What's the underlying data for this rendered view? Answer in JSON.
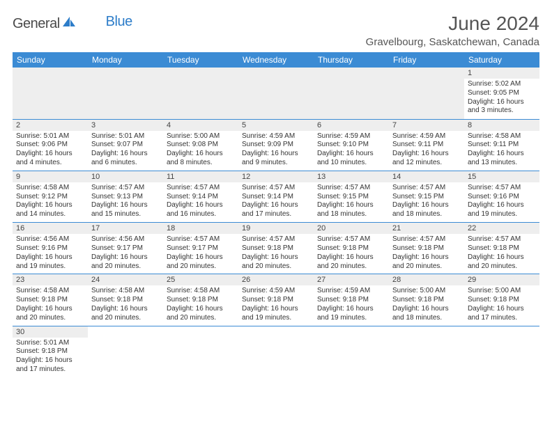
{
  "branding": {
    "logo_part1": "General",
    "logo_part2": "Blue",
    "sail_color": "#2d7dc9"
  },
  "header": {
    "title": "June 2024",
    "location": "Gravelbourg, Saskatchewan, Canada"
  },
  "colors": {
    "header_bg": "#3b8bd4",
    "header_text": "#ffffff",
    "daybar_bg": "#eeeeee",
    "row_divider": "#3b8bd4",
    "text": "#333333",
    "title_text": "#555555"
  },
  "typography": {
    "title_fontsize": 28,
    "location_fontsize": 15,
    "dayheader_fontsize": 12,
    "cell_fontsize": 10
  },
  "calendar": {
    "day_headers": [
      "Sunday",
      "Monday",
      "Tuesday",
      "Wednesday",
      "Thursday",
      "Friday",
      "Saturday"
    ],
    "weeks": [
      [
        null,
        null,
        null,
        null,
        null,
        null,
        {
          "n": "1",
          "sr": "Sunrise: 5:02 AM",
          "ss": "Sunset: 9:05 PM",
          "dl1": "Daylight: 16 hours",
          "dl2": "and 3 minutes."
        }
      ],
      [
        {
          "n": "2",
          "sr": "Sunrise: 5:01 AM",
          "ss": "Sunset: 9:06 PM",
          "dl1": "Daylight: 16 hours",
          "dl2": "and 4 minutes."
        },
        {
          "n": "3",
          "sr": "Sunrise: 5:01 AM",
          "ss": "Sunset: 9:07 PM",
          "dl1": "Daylight: 16 hours",
          "dl2": "and 6 minutes."
        },
        {
          "n": "4",
          "sr": "Sunrise: 5:00 AM",
          "ss": "Sunset: 9:08 PM",
          "dl1": "Daylight: 16 hours",
          "dl2": "and 8 minutes."
        },
        {
          "n": "5",
          "sr": "Sunrise: 4:59 AM",
          "ss": "Sunset: 9:09 PM",
          "dl1": "Daylight: 16 hours",
          "dl2": "and 9 minutes."
        },
        {
          "n": "6",
          "sr": "Sunrise: 4:59 AM",
          "ss": "Sunset: 9:10 PM",
          "dl1": "Daylight: 16 hours",
          "dl2": "and 10 minutes."
        },
        {
          "n": "7",
          "sr": "Sunrise: 4:59 AM",
          "ss": "Sunset: 9:11 PM",
          "dl1": "Daylight: 16 hours",
          "dl2": "and 12 minutes."
        },
        {
          "n": "8",
          "sr": "Sunrise: 4:58 AM",
          "ss": "Sunset: 9:11 PM",
          "dl1": "Daylight: 16 hours",
          "dl2": "and 13 minutes."
        }
      ],
      [
        {
          "n": "9",
          "sr": "Sunrise: 4:58 AM",
          "ss": "Sunset: 9:12 PM",
          "dl1": "Daylight: 16 hours",
          "dl2": "and 14 minutes."
        },
        {
          "n": "10",
          "sr": "Sunrise: 4:57 AM",
          "ss": "Sunset: 9:13 PM",
          "dl1": "Daylight: 16 hours",
          "dl2": "and 15 minutes."
        },
        {
          "n": "11",
          "sr": "Sunrise: 4:57 AM",
          "ss": "Sunset: 9:14 PM",
          "dl1": "Daylight: 16 hours",
          "dl2": "and 16 minutes."
        },
        {
          "n": "12",
          "sr": "Sunrise: 4:57 AM",
          "ss": "Sunset: 9:14 PM",
          "dl1": "Daylight: 16 hours",
          "dl2": "and 17 minutes."
        },
        {
          "n": "13",
          "sr": "Sunrise: 4:57 AM",
          "ss": "Sunset: 9:15 PM",
          "dl1": "Daylight: 16 hours",
          "dl2": "and 18 minutes."
        },
        {
          "n": "14",
          "sr": "Sunrise: 4:57 AM",
          "ss": "Sunset: 9:15 PM",
          "dl1": "Daylight: 16 hours",
          "dl2": "and 18 minutes."
        },
        {
          "n": "15",
          "sr": "Sunrise: 4:57 AM",
          "ss": "Sunset: 9:16 PM",
          "dl1": "Daylight: 16 hours",
          "dl2": "and 19 minutes."
        }
      ],
      [
        {
          "n": "16",
          "sr": "Sunrise: 4:56 AM",
          "ss": "Sunset: 9:16 PM",
          "dl1": "Daylight: 16 hours",
          "dl2": "and 19 minutes."
        },
        {
          "n": "17",
          "sr": "Sunrise: 4:56 AM",
          "ss": "Sunset: 9:17 PM",
          "dl1": "Daylight: 16 hours",
          "dl2": "and 20 minutes."
        },
        {
          "n": "18",
          "sr": "Sunrise: 4:57 AM",
          "ss": "Sunset: 9:17 PM",
          "dl1": "Daylight: 16 hours",
          "dl2": "and 20 minutes."
        },
        {
          "n": "19",
          "sr": "Sunrise: 4:57 AM",
          "ss": "Sunset: 9:18 PM",
          "dl1": "Daylight: 16 hours",
          "dl2": "and 20 minutes."
        },
        {
          "n": "20",
          "sr": "Sunrise: 4:57 AM",
          "ss": "Sunset: 9:18 PM",
          "dl1": "Daylight: 16 hours",
          "dl2": "and 20 minutes."
        },
        {
          "n": "21",
          "sr": "Sunrise: 4:57 AM",
          "ss": "Sunset: 9:18 PM",
          "dl1": "Daylight: 16 hours",
          "dl2": "and 20 minutes."
        },
        {
          "n": "22",
          "sr": "Sunrise: 4:57 AM",
          "ss": "Sunset: 9:18 PM",
          "dl1": "Daylight: 16 hours",
          "dl2": "and 20 minutes."
        }
      ],
      [
        {
          "n": "23",
          "sr": "Sunrise: 4:58 AM",
          "ss": "Sunset: 9:18 PM",
          "dl1": "Daylight: 16 hours",
          "dl2": "and 20 minutes."
        },
        {
          "n": "24",
          "sr": "Sunrise: 4:58 AM",
          "ss": "Sunset: 9:18 PM",
          "dl1": "Daylight: 16 hours",
          "dl2": "and 20 minutes."
        },
        {
          "n": "25",
          "sr": "Sunrise: 4:58 AM",
          "ss": "Sunset: 9:18 PM",
          "dl1": "Daylight: 16 hours",
          "dl2": "and 20 minutes."
        },
        {
          "n": "26",
          "sr": "Sunrise: 4:59 AM",
          "ss": "Sunset: 9:18 PM",
          "dl1": "Daylight: 16 hours",
          "dl2": "and 19 minutes."
        },
        {
          "n": "27",
          "sr": "Sunrise: 4:59 AM",
          "ss": "Sunset: 9:18 PM",
          "dl1": "Daylight: 16 hours",
          "dl2": "and 19 minutes."
        },
        {
          "n": "28",
          "sr": "Sunrise: 5:00 AM",
          "ss": "Sunset: 9:18 PM",
          "dl1": "Daylight: 16 hours",
          "dl2": "and 18 minutes."
        },
        {
          "n": "29",
          "sr": "Sunrise: 5:00 AM",
          "ss": "Sunset: 9:18 PM",
          "dl1": "Daylight: 16 hours",
          "dl2": "and 17 minutes."
        }
      ],
      [
        {
          "n": "30",
          "sr": "Sunrise: 5:01 AM",
          "ss": "Sunset: 9:18 PM",
          "dl1": "Daylight: 16 hours",
          "dl2": "and 17 minutes."
        },
        null,
        null,
        null,
        null,
        null,
        null
      ]
    ]
  }
}
